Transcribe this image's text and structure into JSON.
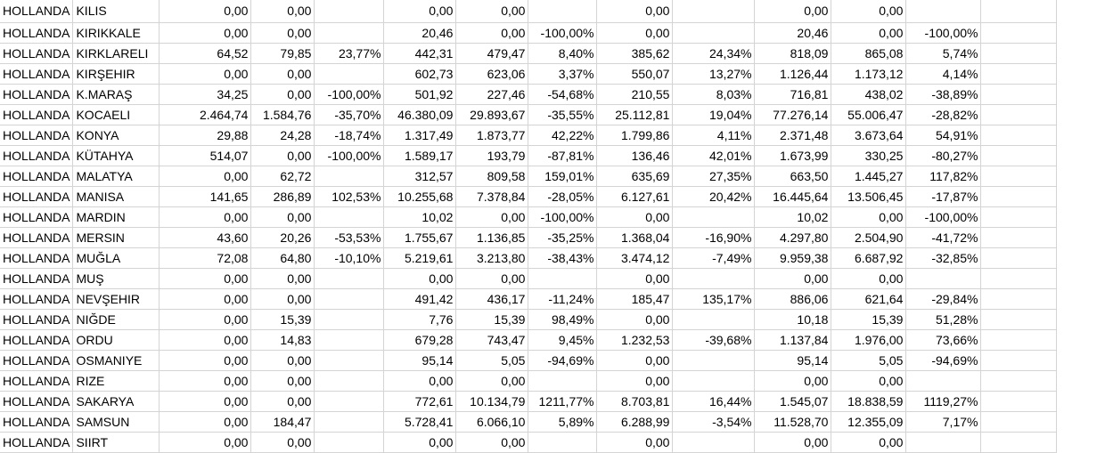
{
  "rows": [
    [
      "HOLLANDA",
      "KILIS",
      "0,00",
      "0,00",
      "",
      "0,00",
      "0,00",
      "",
      "0,00",
      "",
      "0,00",
      "0,00",
      "",
      ""
    ],
    [
      "HOLLANDA",
      "KIRIKKALE",
      "0,00",
      "0,00",
      "",
      "20,46",
      "0,00",
      "-100,00%",
      "0,00",
      "",
      "20,46",
      "0,00",
      "-100,00%",
      ""
    ],
    [
      "HOLLANDA",
      "KIRKLARELI",
      "64,52",
      "79,85",
      "23,77%",
      "442,31",
      "479,47",
      "8,40%",
      "385,62",
      "24,34%",
      "818,09",
      "865,08",
      "5,74%",
      ""
    ],
    [
      "HOLLANDA",
      "KIRŞEHIR",
      "0,00",
      "0,00",
      "",
      "602,73",
      "623,06",
      "3,37%",
      "550,07",
      "13,27%",
      "1.126,44",
      "1.173,12",
      "4,14%",
      ""
    ],
    [
      "HOLLANDA",
      "K.MARAŞ",
      "34,25",
      "0,00",
      "-100,00%",
      "501,92",
      "227,46",
      "-54,68%",
      "210,55",
      "8,03%",
      "716,81",
      "438,02",
      "-38,89%",
      ""
    ],
    [
      "HOLLANDA",
      "KOCAELI",
      "2.464,74",
      "1.584,76",
      "-35,70%",
      "46.380,09",
      "29.893,67",
      "-35,55%",
      "25.112,81",
      "19,04%",
      "77.276,14",
      "55.006,47",
      "-28,82%",
      ""
    ],
    [
      "HOLLANDA",
      "KONYA",
      "29,88",
      "24,28",
      "-18,74%",
      "1.317,49",
      "1.873,77",
      "42,22%",
      "1.799,86",
      "4,11%",
      "2.371,48",
      "3.673,64",
      "54,91%",
      ""
    ],
    [
      "HOLLANDA",
      "KÜTAHYA",
      "514,07",
      "0,00",
      "-100,00%",
      "1.589,17",
      "193,79",
      "-87,81%",
      "136,46",
      "42,01%",
      "1.673,99",
      "330,25",
      "-80,27%",
      ""
    ],
    [
      "HOLLANDA",
      "MALATYA",
      "0,00",
      "62,72",
      "",
      "312,57",
      "809,58",
      "159,01%",
      "635,69",
      "27,35%",
      "663,50",
      "1.445,27",
      "117,82%",
      ""
    ],
    [
      "HOLLANDA",
      "MANISA",
      "141,65",
      "286,89",
      "102,53%",
      "10.255,68",
      "7.378,84",
      "-28,05%",
      "6.127,61",
      "20,42%",
      "16.445,64",
      "13.506,45",
      "-17,87%",
      ""
    ],
    [
      "HOLLANDA",
      "MARDIN",
      "0,00",
      "0,00",
      "",
      "10,02",
      "0,00",
      "-100,00%",
      "0,00",
      "",
      "10,02",
      "0,00",
      "-100,00%",
      ""
    ],
    [
      "HOLLANDA",
      "MERSIN",
      "43,60",
      "20,26",
      "-53,53%",
      "1.755,67",
      "1.136,85",
      "-35,25%",
      "1.368,04",
      "-16,90%",
      "4.297,80",
      "2.504,90",
      "-41,72%",
      ""
    ],
    [
      "HOLLANDA",
      "MUĞLA",
      "72,08",
      "64,80",
      "-10,10%",
      "5.219,61",
      "3.213,80",
      "-38,43%",
      "3.474,12",
      "-7,49%",
      "9.959,38",
      "6.687,92",
      "-32,85%",
      ""
    ],
    [
      "HOLLANDA",
      "MUŞ",
      "0,00",
      "0,00",
      "",
      "0,00",
      "0,00",
      "",
      "0,00",
      "",
      "0,00",
      "0,00",
      "",
      ""
    ],
    [
      "HOLLANDA",
      "NEVŞEHIR",
      "0,00",
      "0,00",
      "",
      "491,42",
      "436,17",
      "-11,24%",
      "185,47",
      "135,17%",
      "886,06",
      "621,64",
      "-29,84%",
      ""
    ],
    [
      "HOLLANDA",
      "NIĞDE",
      "0,00",
      "15,39",
      "",
      "7,76",
      "15,39",
      "98,49%",
      "0,00",
      "",
      "10,18",
      "15,39",
      "51,28%",
      ""
    ],
    [
      "HOLLANDA",
      "ORDU",
      "0,00",
      "14,83",
      "",
      "679,28",
      "743,47",
      "9,45%",
      "1.232,53",
      "-39,68%",
      "1.137,84",
      "1.976,00",
      "73,66%",
      ""
    ],
    [
      "HOLLANDA",
      "OSMANIYE",
      "0,00",
      "0,00",
      "",
      "95,14",
      "5,05",
      "-94,69%",
      "0,00",
      "",
      "95,14",
      "5,05",
      "-94,69%",
      ""
    ],
    [
      "HOLLANDA",
      "RIZE",
      "0,00",
      "0,00",
      "",
      "0,00",
      "0,00",
      "",
      "0,00",
      "",
      "0,00",
      "0,00",
      "",
      ""
    ],
    [
      "HOLLANDA",
      "SAKARYA",
      "0,00",
      "0,00",
      "",
      "772,61",
      "10.134,79",
      "1211,77%",
      "8.703,81",
      "16,44%",
      "1.545,07",
      "18.838,59",
      "1119,27%",
      ""
    ],
    [
      "HOLLANDA",
      "SAMSUN",
      "0,00",
      "184,47",
      "",
      "5.728,41",
      "6.066,10",
      "5,89%",
      "6.288,99",
      "-3,54%",
      "11.528,70",
      "12.355,09",
      "7,17%",
      ""
    ],
    [
      "HOLLANDA",
      "SIIRT",
      "0,00",
      "0,00",
      "",
      "0,00",
      "0,00",
      "",
      "0,00",
      "",
      "0,00",
      "0,00",
      "",
      ""
    ]
  ]
}
